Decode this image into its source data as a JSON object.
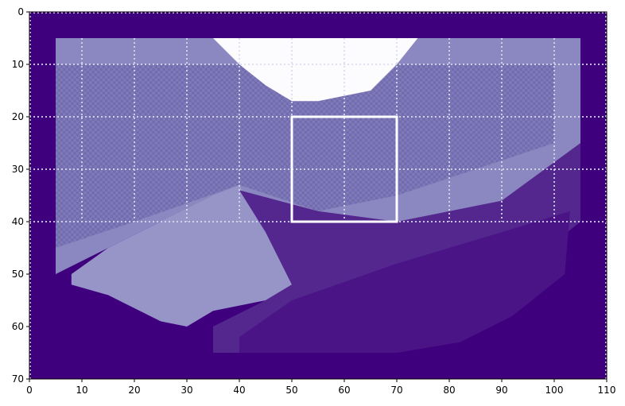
{
  "chart_data": {
    "type": "heatmap",
    "title": "",
    "xlabel": "",
    "ylabel": "",
    "xlim": [
      0,
      110
    ],
    "ylim": [
      70,
      0
    ],
    "y_inverted": true,
    "x_ticks": [
      0,
      10,
      20,
      30,
      40,
      50,
      60,
      70,
      80,
      90,
      100,
      110
    ],
    "y_ticks": [
      0,
      10,
      20,
      30,
      40,
      50,
      60,
      70
    ],
    "x_tick_labels": [
      "0",
      "10",
      "20",
      "30",
      "40",
      "50",
      "60",
      "70",
      "80",
      "90",
      "100",
      "110"
    ],
    "y_tick_labels": [
      "0",
      "10",
      "20",
      "30",
      "40",
      "50",
      "60",
      "70"
    ],
    "grid": true,
    "grid_style": "dotted",
    "grid_color": "#dcdcf0",
    "colormap": "Purples",
    "background_color": "#3f007d",
    "regions": [
      {
        "name": "upper-field",
        "color": "#8b87c0",
        "polygon": [
          [
            5,
            5
          ],
          [
            105,
            5
          ],
          [
            105,
            34
          ],
          [
            70,
            43
          ],
          [
            55,
            44
          ],
          [
            45,
            45
          ],
          [
            40,
            35
          ],
          [
            25,
            40
          ],
          [
            15,
            45
          ],
          [
            5,
            50
          ]
        ]
      },
      {
        "name": "checker-band",
        "color": "#7f7bb8",
        "polygon": [
          [
            5,
            10
          ],
          [
            100,
            10
          ],
          [
            100,
            25
          ],
          [
            70,
            35
          ],
          [
            55,
            38
          ],
          [
            40,
            33
          ],
          [
            20,
            40
          ],
          [
            5,
            45
          ]
        ]
      },
      {
        "name": "light-wedge",
        "color": "#9795c7",
        "polygon": [
          [
            8,
            50
          ],
          [
            15,
            45
          ],
          [
            25,
            40
          ],
          [
            35,
            35
          ],
          [
            40,
            33
          ],
          [
            45,
            42
          ],
          [
            48,
            46
          ],
          [
            50,
            52
          ],
          [
            45,
            55
          ],
          [
            35,
            57
          ],
          [
            30,
            60
          ],
          [
            25,
            59
          ],
          [
            15,
            54
          ],
          [
            8,
            52
          ]
        ]
      },
      {
        "name": "mid-band",
        "color": "#54278f",
        "polygon": [
          [
            40,
            34
          ],
          [
            55,
            38
          ],
          [
            70,
            40
          ],
          [
            90,
            36
          ],
          [
            105,
            25
          ],
          [
            105,
            40
          ],
          [
            90,
            52
          ],
          [
            80,
            60
          ],
          [
            70,
            64
          ],
          [
            50,
            65
          ],
          [
            35,
            65
          ],
          [
            35,
            60
          ],
          [
            45,
            55
          ],
          [
            50,
            52
          ],
          [
            45,
            42
          ]
        ]
      },
      {
        "name": "lower-band",
        "color": "#4a1486",
        "polygon": [
          [
            50,
            55
          ],
          [
            70,
            48
          ],
          [
            90,
            42
          ],
          [
            103,
            38
          ],
          [
            102,
            50
          ],
          [
            92,
            58
          ],
          [
            82,
            63
          ],
          [
            70,
            65
          ],
          [
            40,
            65
          ],
          [
            40,
            62
          ]
        ]
      },
      {
        "name": "white-cap",
        "color": "#fcfbfd",
        "polygon": [
          [
            35,
            5
          ],
          [
            74,
            5
          ],
          [
            70,
            10
          ],
          [
            65,
            15
          ],
          [
            55,
            17
          ],
          [
            50,
            17
          ],
          [
            45,
            14
          ],
          [
            40,
            10
          ]
        ]
      }
    ],
    "highlight_box": {
      "x": [
        50,
        70
      ],
      "y": [
        20,
        40
      ],
      "color": "#ffffff"
    }
  }
}
